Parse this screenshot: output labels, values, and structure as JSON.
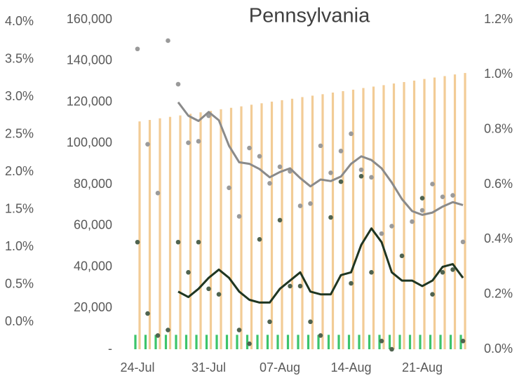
{
  "chart_data": {
    "type": "combo",
    "title": "Pennsylvania",
    "categories": [
      "24-Jul",
      null,
      null,
      null,
      null,
      null,
      null,
      "31-Jul",
      null,
      null,
      null,
      null,
      null,
      null,
      "07-Aug",
      null,
      null,
      null,
      null,
      null,
      null,
      "14-Aug",
      null,
      null,
      null,
      null,
      null,
      null,
      "21-Aug",
      null,
      null,
      null,
      null
    ],
    "series": [
      {
        "mark": "bar",
        "axis": "y",
        "color": "#3dc46b",
        "values": [
          7000,
          7000,
          7000,
          7000,
          7000,
          7000,
          7000,
          7000,
          7000,
          7000,
          7000,
          7000,
          7000,
          7000,
          7000,
          7000,
          7000,
          7000,
          7000,
          7000,
          7000,
          7000,
          7000,
          7000,
          7000,
          7000,
          7000,
          7000,
          7000,
          7000,
          7000,
          7000,
          7000
        ]
      },
      {
        "mark": "bar",
        "axis": "y",
        "color": "#f2cc96",
        "values": [
          110600,
          111300,
          112100,
          112800,
          113500,
          114300,
          115000,
          115700,
          116500,
          117200,
          117900,
          118700,
          119400,
          120200,
          120900,
          121600,
          122400,
          123100,
          123800,
          124600,
          125300,
          126000,
          126800,
          127500,
          128200,
          129000,
          129700,
          130400,
          131200,
          131900,
          132600,
          133400,
          134100
        ]
      },
      {
        "mark": "dot",
        "axis": "y3",
        "color": "#9a9a9a",
        "values": [
          3.64,
          2.37,
          1.72,
          3.75,
          3.17,
          2.39,
          2.41,
          2.75,
          null,
          1.79,
          1.41,
          2.32,
          2.21,
          1.85,
          2.07,
          2.01,
          1.55,
          1.58,
          2.35,
          1.99,
          2.28,
          2.51,
          2.03,
          1.93,
          1.18,
          1.28,
          null,
          1.34,
          1.49,
          1.84,
          1.67,
          1.69,
          1.07
        ]
      },
      {
        "mark": "line",
        "axis": "y3",
        "color": "#8a8a8a",
        "values": [
          null,
          null,
          null,
          null,
          2.93,
          2.75,
          2.68,
          2.8,
          2.69,
          2.35,
          2.13,
          2.11,
          2.04,
          1.93,
          2.0,
          2.05,
          1.92,
          1.81,
          1.9,
          1.88,
          1.94,
          2.11,
          2.21,
          2.16,
          2.05,
          1.86,
          1.64,
          1.48,
          1.43,
          1.46,
          1.54,
          1.6,
          1.56
        ]
      },
      {
        "mark": "dot",
        "axis": "y2",
        "color": "#4f634f",
        "values": [
          0.39,
          0.13,
          0.05,
          0.07,
          0.39,
          0.28,
          0.39,
          0.22,
          0.2,
          null,
          0.07,
          0.02,
          0.4,
          0.1,
          0.47,
          0.23,
          0.23,
          0.1,
          0.05,
          0.48,
          0.61,
          0.24,
          0.63,
          0.28,
          0.03,
          0.0,
          0.34,
          null,
          0.55,
          0.2,
          0.28,
          0.29,
          0.03
        ]
      },
      {
        "mark": "line",
        "axis": "y2",
        "color": "#1f3622",
        "values": [
          null,
          null,
          null,
          null,
          0.21,
          0.19,
          0.22,
          0.26,
          0.29,
          0.26,
          0.21,
          0.18,
          0.17,
          0.17,
          0.22,
          0.25,
          0.28,
          0.21,
          0.2,
          0.2,
          0.27,
          0.28,
          0.38,
          0.44,
          0.39,
          0.28,
          0.25,
          0.25,
          0.23,
          0.25,
          0.3,
          0.31,
          0.26
        ]
      }
    ],
    "ylim": [
      0,
      160000
    ],
    "yticks": [
      {
        "value": 0,
        "label": "-"
      },
      {
        "value": 20000,
        "label": "20,000"
      },
      {
        "value": 40000,
        "label": "40,000"
      },
      {
        "value": 60000,
        "label": "60,000"
      },
      {
        "value": 80000,
        "label": "80,000"
      },
      {
        "value": 100000,
        "label": "100,000"
      },
      {
        "value": 120000,
        "label": "120,000"
      },
      {
        "value": 140000,
        "label": "140,000"
      },
      {
        "value": 160000,
        "label": "160,000"
      }
    ],
    "y2lim": [
      0,
      1.2
    ],
    "y2ticks": [
      {
        "value": 0,
        "label": "0.0%"
      },
      {
        "value": 0.2,
        "label": "0.2%"
      },
      {
        "value": 0.4,
        "label": "0.4%"
      },
      {
        "value": 0.6,
        "label": "0.6%"
      },
      {
        "value": 0.8,
        "label": "0.8%"
      },
      {
        "value": 1.0,
        "label": "1.0%"
      },
      {
        "value": 1.2,
        "label": "1.2%"
      }
    ],
    "y3lim": [
      -0.36,
      4.03
    ],
    "y3ticks": [
      {
        "value": 0,
        "label": "0.0%"
      },
      {
        "value": 0.5,
        "label": "0.5%"
      },
      {
        "value": 1.0,
        "label": "1.0%"
      },
      {
        "value": 1.5,
        "label": "1.5%"
      },
      {
        "value": 2.0,
        "label": "2.0%"
      },
      {
        "value": 2.5,
        "label": "2.5%"
      },
      {
        "value": 3.0,
        "label": "3.0%"
      },
      {
        "value": 3.5,
        "label": "3.5%"
      },
      {
        "value": 4.0,
        "label": "4.0%"
      }
    ],
    "grid": false
  }
}
